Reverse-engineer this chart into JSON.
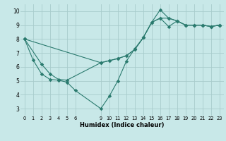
{
  "bg_color": "#c8e8e8",
  "grid_color": "#a8cccc",
  "line_color": "#2a7a6e",
  "xlabel": "Humidex (Indice chaleur)",
  "xlim": [
    -0.5,
    23.5
  ],
  "ylim": [
    2.5,
    10.5
  ],
  "xticks": [
    0,
    1,
    2,
    3,
    4,
    5,
    6,
    9,
    10,
    11,
    12,
    13,
    14,
    15,
    16,
    17,
    18,
    19,
    20,
    21,
    22,
    23
  ],
  "yticks": [
    3,
    4,
    5,
    6,
    7,
    8,
    9,
    10
  ],
  "line1_x": [
    0,
    1,
    2,
    3,
    4,
    5,
    6,
    9,
    10,
    11,
    12,
    13,
    14,
    15,
    16,
    17,
    18,
    19,
    20,
    21,
    22,
    23
  ],
  "line1_y": [
    8.0,
    6.5,
    5.5,
    5.1,
    5.05,
    4.9,
    4.3,
    3.0,
    3.9,
    5.0,
    6.4,
    7.3,
    8.1,
    9.2,
    10.1,
    9.5,
    9.3,
    9.0,
    9.0,
    9.0,
    8.9,
    9.0
  ],
  "line2_x": [
    0,
    2,
    3,
    4,
    5,
    9,
    10,
    11,
    12,
    13,
    14,
    15,
    16,
    17,
    18,
    19,
    20,
    21,
    22,
    23
  ],
  "line2_y": [
    8.0,
    6.2,
    5.5,
    5.1,
    5.05,
    6.3,
    6.45,
    6.6,
    6.8,
    7.25,
    8.1,
    9.2,
    9.5,
    8.9,
    9.3,
    9.0,
    9.0,
    9.0,
    8.9,
    9.0
  ],
  "line3_x": [
    0,
    9,
    10,
    11,
    12,
    13,
    14,
    15,
    16,
    17,
    18,
    19,
    20,
    21,
    22,
    23
  ],
  "line3_y": [
    8.0,
    6.3,
    6.45,
    6.6,
    6.8,
    7.25,
    8.1,
    9.2,
    9.5,
    9.5,
    9.3,
    9.0,
    9.0,
    9.0,
    8.9,
    9.0
  ]
}
